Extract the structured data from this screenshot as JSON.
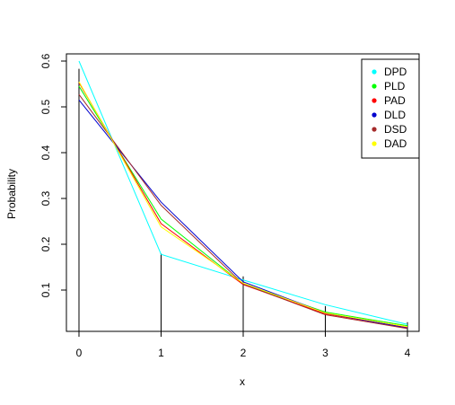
{
  "chart_data": {
    "type": "line",
    "title": "",
    "xlabel": "x",
    "ylabel": "Probability",
    "x": [
      0,
      1,
      2,
      3,
      4
    ],
    "xlim": [
      0,
      4
    ],
    "ylim": [
      0,
      0.6
    ],
    "x_ticks": [
      "0",
      "1",
      "2",
      "3",
      "4"
    ],
    "y_ticks": [
      "0.1",
      "0.2",
      "0.3",
      "0.4",
      "0.5",
      "0.6"
    ],
    "y_tick_values": [
      0.1,
      0.2,
      0.3,
      0.4,
      0.5,
      0.6
    ],
    "observed": [
      0.583,
      0.18,
      0.13,
      0.065,
      0.03
    ],
    "series": [
      {
        "name": "DPD",
        "color": "#00ffff",
        "values": [
          0.6,
          0.178,
          0.122,
          0.068,
          0.025
        ]
      },
      {
        "name": "PLD",
        "color": "#00ff00",
        "values": [
          0.545,
          0.255,
          0.113,
          0.052,
          0.022
        ]
      },
      {
        "name": "PAD",
        "color": "#ff0000",
        "values": [
          0.553,
          0.245,
          0.112,
          0.048,
          0.018
        ]
      },
      {
        "name": "DLD",
        "color": "#0000cd",
        "values": [
          0.515,
          0.292,
          0.118,
          0.05,
          0.017
        ]
      },
      {
        "name": "DSD",
        "color": "#a52a2a",
        "values": [
          0.527,
          0.285,
          0.113,
          0.046,
          0.016
        ]
      },
      {
        "name": "DAD",
        "color": "#ffff00",
        "values": [
          0.555,
          0.238,
          0.115,
          0.05,
          0.02
        ]
      }
    ],
    "grid": false,
    "legend_position": "top-right"
  }
}
